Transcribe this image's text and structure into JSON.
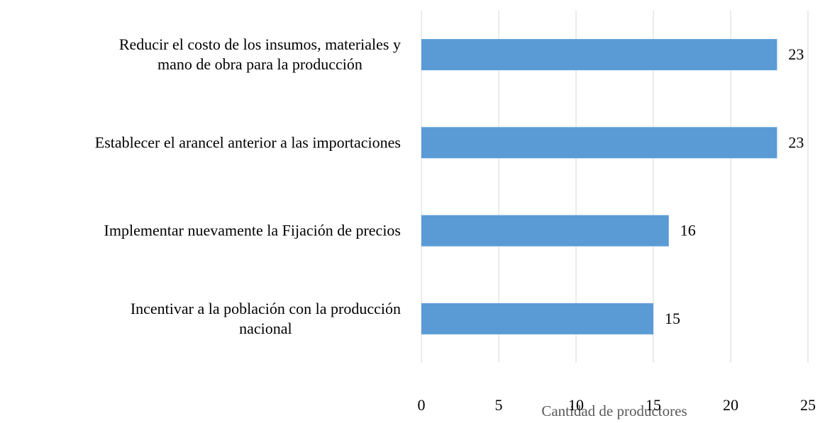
{
  "chart_data": {
    "type": "bar",
    "orientation": "horizontal",
    "categories": [
      [
        "Reducir el costo de los insumos, materiales y",
        "mano de obra para la producción"
      ],
      [
        "Establecer el arancel anterior a las importaciones"
      ],
      [
        "Implementar nuevamente la Fijación de precios"
      ],
      [
        "Incentivar a la población con la producción",
        "nacional"
      ]
    ],
    "values": [
      23,
      23,
      16,
      15
    ],
    "color": "#5b9bd5",
    "xlim": [
      0,
      25
    ],
    "xticks": [
      0,
      5,
      10,
      15,
      20,
      25
    ],
    "grid": true,
    "xlabel": "Cantidad de productores"
  }
}
